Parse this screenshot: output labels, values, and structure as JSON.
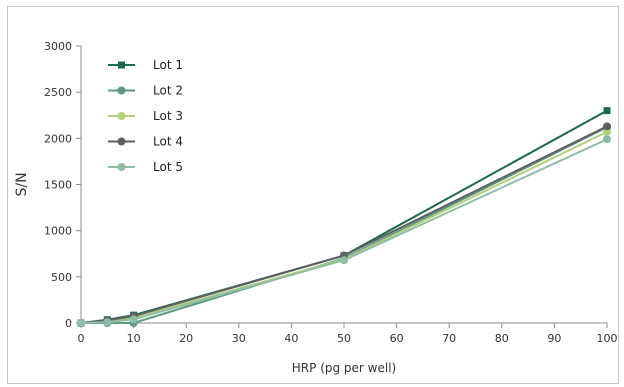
{
  "chart_data": {
    "type": "line",
    "title": "",
    "xlabel": "HRP (pg per well)",
    "ylabel": "S/N",
    "xlim": [
      0,
      100
    ],
    "ylim": [
      0,
      3000
    ],
    "xticks": [
      0,
      10,
      20,
      30,
      40,
      50,
      60,
      70,
      80,
      90,
      100
    ],
    "yticks": [
      0,
      500,
      1000,
      1500,
      2000,
      2500,
      3000
    ],
    "grid": false,
    "legend": "top-left",
    "x": [
      0,
      5,
      10,
      50,
      100
    ],
    "series": [
      {
        "name": "Lot 1",
        "marker": "square",
        "color": "#1b6b4a",
        "values": [
          0,
          35,
          85,
          730,
          2300
        ]
      },
      {
        "name": "Lot 2",
        "marker": "circle",
        "color": "#5e9a80",
        "values": [
          0,
          0,
          0,
          700,
          2120
        ]
      },
      {
        "name": "Lot 3",
        "marker": "circle",
        "color": "#b0d07a",
        "values": [
          0,
          20,
          55,
          690,
          2070
        ]
      },
      {
        "name": "Lot 4",
        "marker": "circle",
        "color": "#5f6063",
        "values": [
          0,
          30,
          75,
          730,
          2130
        ]
      },
      {
        "name": "Lot 5",
        "marker": "circle",
        "color": "#8fbca5",
        "values": [
          0,
          10,
          40,
          680,
          1990
        ]
      }
    ]
  }
}
